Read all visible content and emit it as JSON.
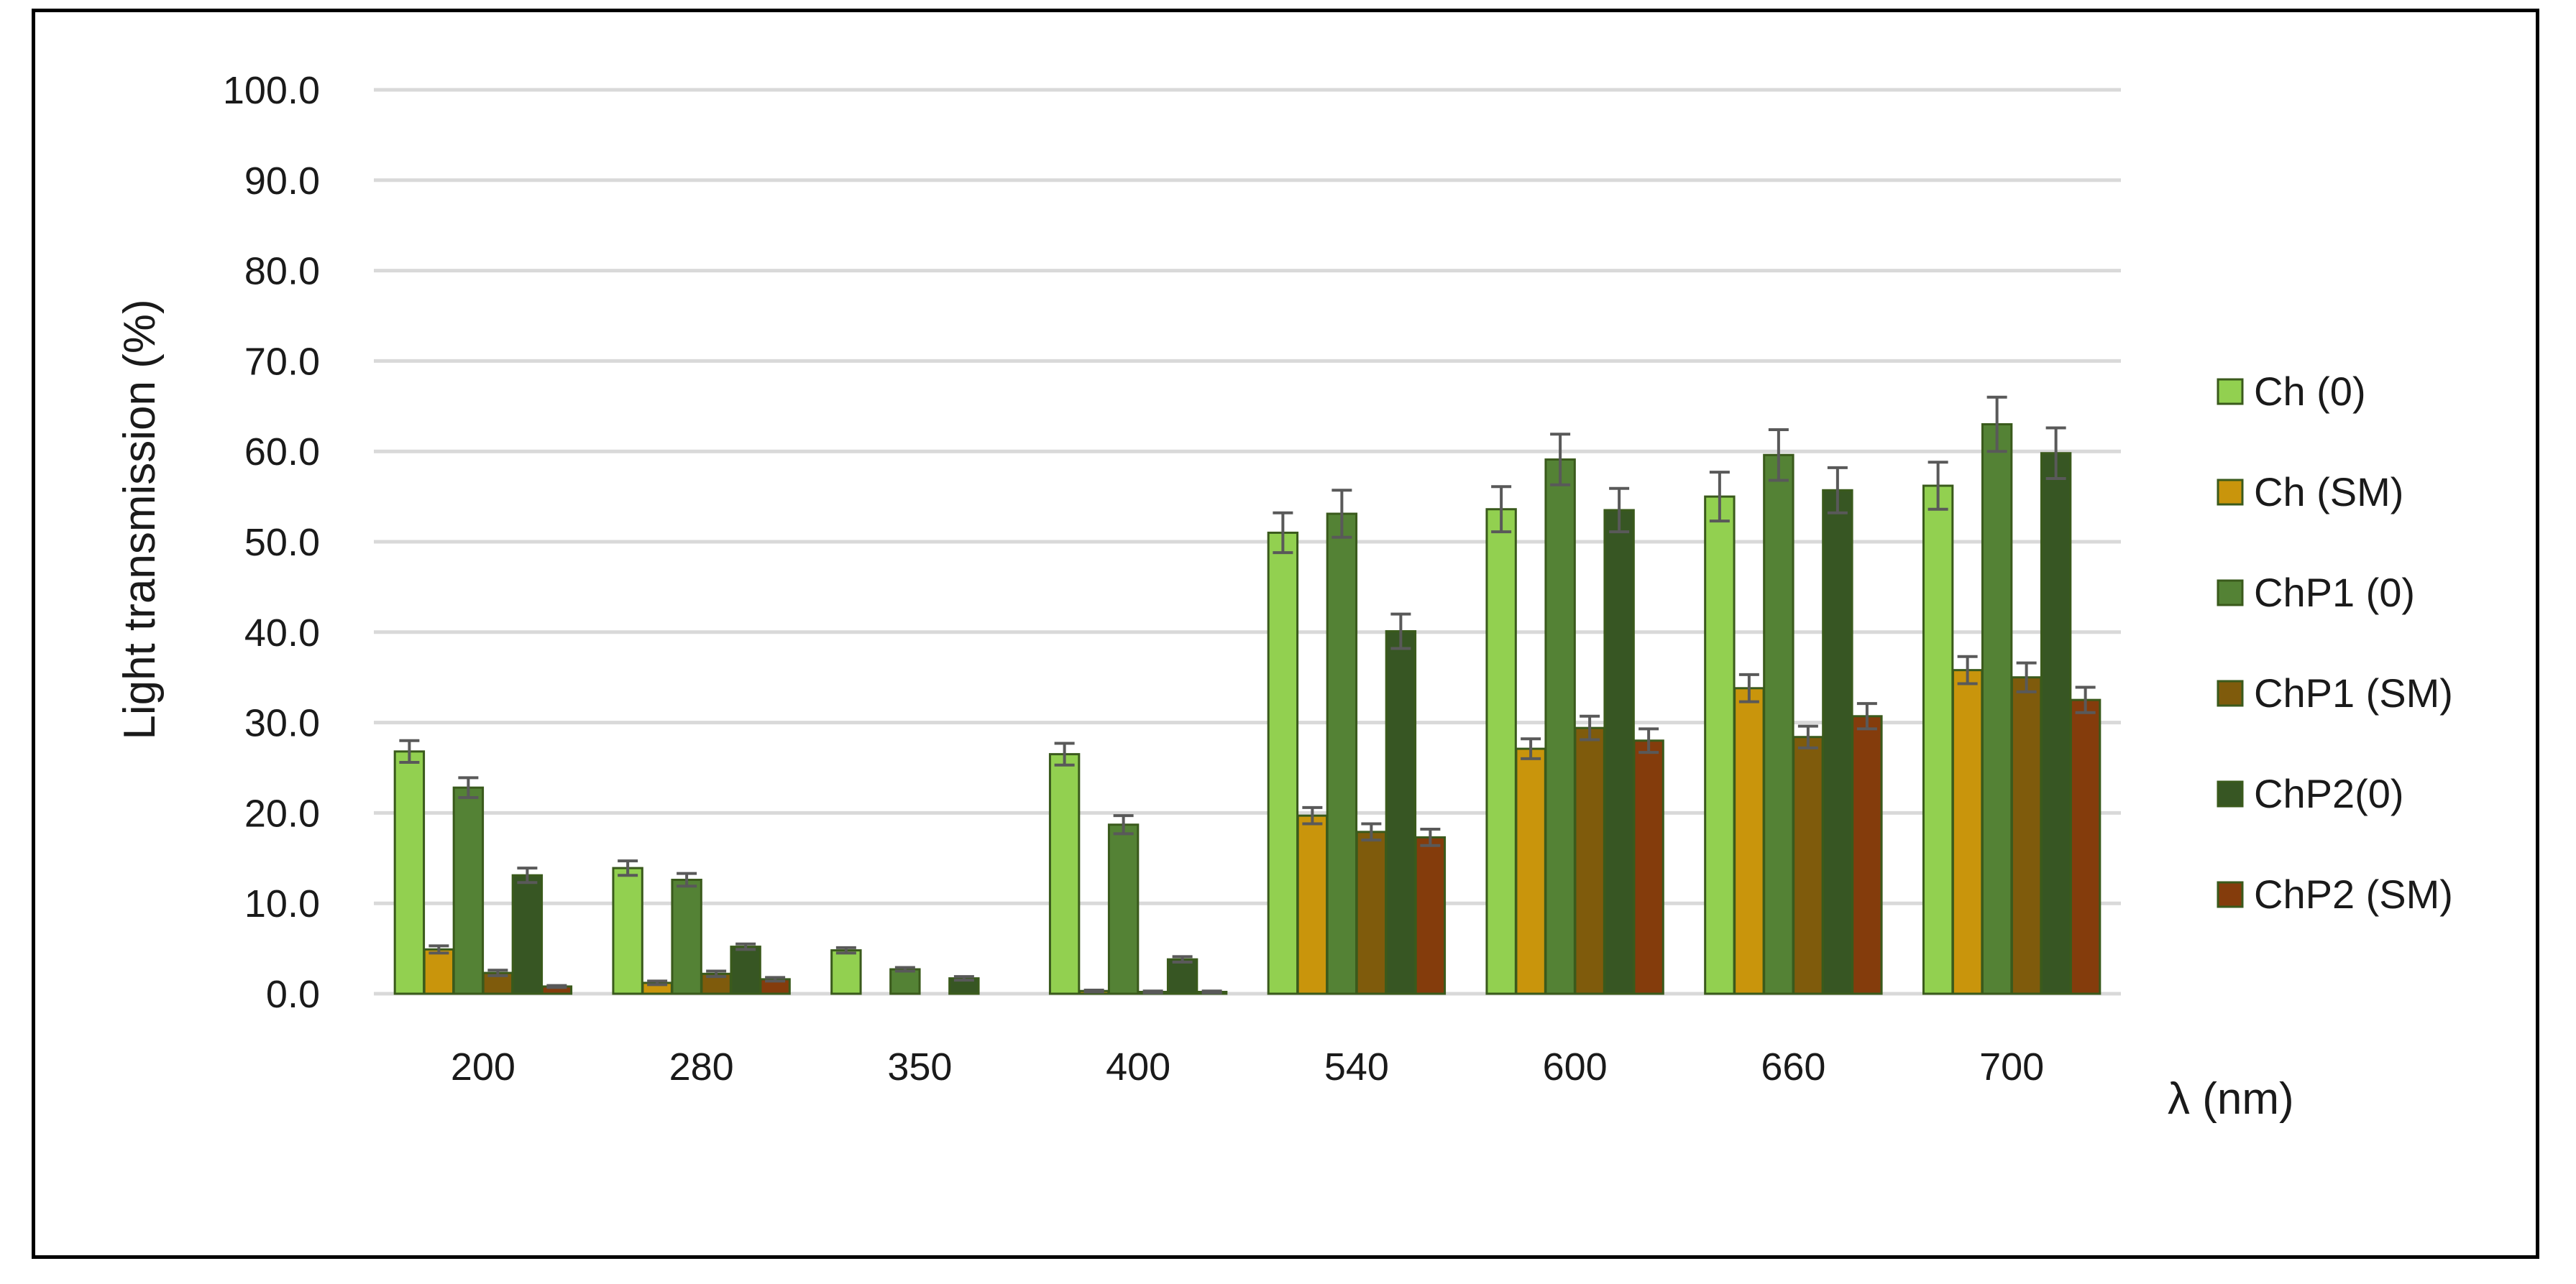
{
  "chart_data": {
    "type": "bar",
    "title": "",
    "xlabel": "λ (nm)",
    "ylabel": "Light transmission (%)",
    "ylim": [
      0,
      100
    ],
    "yticks": [
      "0.0",
      "10.0",
      "20.0",
      "30.0",
      "40.0",
      "50.0",
      "60.0",
      "70.0",
      "80.0",
      "90.0",
      "100.0"
    ],
    "grid": true,
    "legend_position": "right",
    "categories": [
      "200",
      "280",
      "350",
      "400",
      "540",
      "600",
      "660",
      "700"
    ],
    "series": [
      {
        "name": "Ch (0)",
        "color": "#92D050",
        "values": [
          26.8,
          13.9,
          4.8,
          26.5,
          51.0,
          53.6,
          55.0,
          56.2
        ],
        "errors": [
          1.2,
          0.8,
          0.3,
          1.2,
          2.2,
          2.5,
          2.7,
          2.6
        ]
      },
      {
        "name": "Ch (SM)",
        "color": "#C9950C",
        "values": [
          4.9,
          1.2,
          0.0,
          0.3,
          19.7,
          27.1,
          33.8,
          35.8
        ],
        "errors": [
          0.4,
          0.2,
          0.0,
          0.1,
          0.9,
          1.1,
          1.5,
          1.5
        ]
      },
      {
        "name": "ChP1 (0)",
        "color": "#548235",
        "values": [
          22.8,
          12.6,
          2.7,
          18.7,
          53.1,
          59.1,
          59.6,
          63.0
        ],
        "errors": [
          1.1,
          0.7,
          0.2,
          1.0,
          2.6,
          2.8,
          2.8,
          3.0
        ]
      },
      {
        "name": "ChP1 (SM)",
        "color": "#7F5B0C",
        "values": [
          2.3,
          2.2,
          0.0,
          0.2,
          17.9,
          29.4,
          28.4,
          35.0
        ],
        "errors": [
          0.3,
          0.3,
          0.0,
          0.1,
          0.9,
          1.3,
          1.2,
          1.6
        ]
      },
      {
        "name": "ChP2(0)",
        "color": "#375623",
        "values": [
          13.1,
          5.2,
          1.7,
          3.8,
          40.1,
          53.5,
          55.7,
          59.8
        ],
        "errors": [
          0.8,
          0.3,
          0.2,
          0.3,
          1.9,
          2.4,
          2.5,
          2.8
        ]
      },
      {
        "name": "ChP2 (SM)",
        "color": "#843C0C",
        "values": [
          0.8,
          1.6,
          0.0,
          0.2,
          17.3,
          28.0,
          30.7,
          32.5
        ],
        "errors": [
          0.1,
          0.2,
          0.0,
          0.1,
          0.9,
          1.3,
          1.4,
          1.4
        ]
      }
    ]
  }
}
